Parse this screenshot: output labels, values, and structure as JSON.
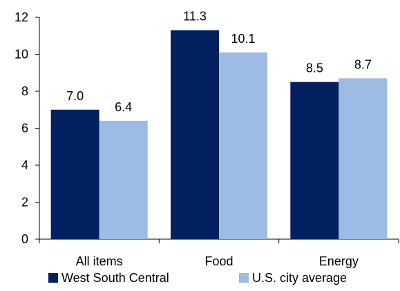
{
  "chart_data": {
    "type": "bar",
    "categories": [
      "All items",
      "Food",
      "Energy"
    ],
    "series": [
      {
        "name": "West South Central",
        "values": [
          7.0,
          11.3,
          8.5
        ],
        "labels": [
          "7.0",
          "11.3",
          "8.5"
        ],
        "color": "#002060"
      },
      {
        "name": "U.S. city average",
        "values": [
          6.4,
          10.1,
          8.7
        ],
        "labels": [
          "6.4",
          "10.1",
          "8.7"
        ],
        "color": "#9DBCE3"
      }
    ],
    "yticks": [
      "0",
      "2",
      "4",
      "6",
      "8",
      "10",
      "12"
    ],
    "ylim": [
      0,
      12
    ],
    "grid": false,
    "legend": "bottom",
    "title": "",
    "xlabel": "",
    "ylabel": ""
  }
}
